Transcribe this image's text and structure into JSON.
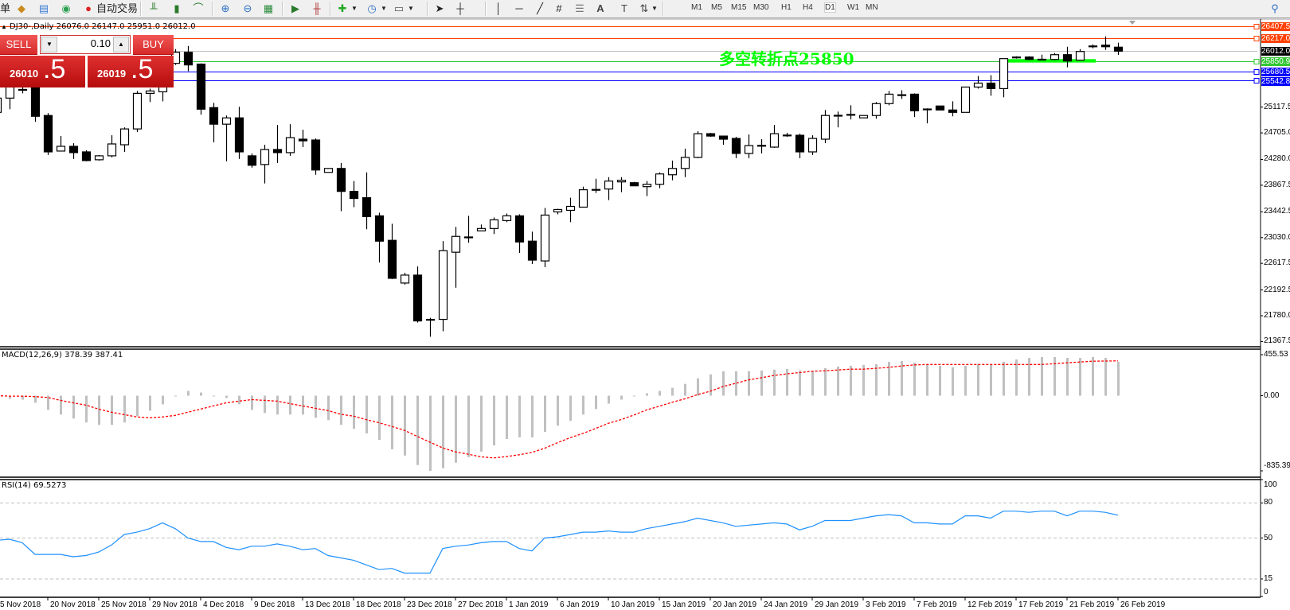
{
  "toolbar": {
    "left_fragment": "单",
    "auto_trade_label": "自动交易",
    "icons": [
      "new-order-icon",
      "market-watch-icon",
      "signals-icon",
      "auto-trading-icon",
      "bar-chart-icon",
      "candlestick-icon",
      "line-chart-icon",
      "zoom-in-icon",
      "zoom-out-icon",
      "tile-windows-icon",
      "auto-scroll-icon",
      "chart-shift-icon",
      "new-chart-icon",
      "periods-clock-icon",
      "templates-icon",
      "cursor-icon",
      "crosshair-icon",
      "vertical-line-icon",
      "horizontal-line-icon",
      "trendline-icon",
      "fibonacci-icon",
      "channels-icon",
      "text-icon",
      "text-label-icon",
      "arrows-icon",
      "search-icon"
    ],
    "timeframes": [
      "M1",
      "M5",
      "M15",
      "M30",
      "H1",
      "H4",
      "D1",
      "W1",
      "MN"
    ],
    "active_timeframe": "D1"
  },
  "chart": {
    "symbol_line": "DJ30-,Daily  26076.0 26147.0 25951.0 26012.0",
    "macd_title": "MACD(12,26,9) 378.39 387.41",
    "rsi_title": "RSI(14) 69.5273"
  },
  "trade_panel": {
    "sell_label": "SELL",
    "buy_label": "BUY",
    "lot": "0.10",
    "sell_price_main": "26010",
    "sell_price_frac": ".5",
    "buy_price_main": "26019",
    "buy_price_frac": ".5"
  },
  "annotation": {
    "text": "多空转折点25850",
    "color": "#00ff00",
    "support_zone_color": "#00ff00"
  },
  "horizontal_lines": [
    {
      "price": 26407.5,
      "label": "26407.5",
      "color": "#ff4000"
    },
    {
      "price": 26217.0,
      "label": "26217.0",
      "color": "#ff4000"
    },
    {
      "price": 26012.0,
      "label": "26012.0",
      "color": "#c0c0c0",
      "label_bg": "#000000"
    },
    {
      "price": 25850.9,
      "label": "25850.9",
      "color": "#32c832"
    },
    {
      "price": 25680.5,
      "label": "25680.5",
      "color": "#0000ff"
    },
    {
      "price": 25542.8,
      "label": "25542.8",
      "color": "#0000ff"
    }
  ],
  "chart_data": [
    {
      "type": "candlestick",
      "symbol": "DJ30-",
      "timeframe": "Daily",
      "ylim": [
        21284,
        26525
      ],
      "y_tick_labels": [
        "25117.5",
        "24705.0",
        "24280.0",
        "23867.5",
        "23442.5",
        "23030.0",
        "22617.5",
        "22192.5",
        "21780.0",
        "21367.5"
      ],
      "date_labels": [
        "5 Nov 2018",
        "20 Nov 2018",
        "25 Nov 2018",
        "29 Nov 2018",
        "4 Dec 2018",
        "9 Dec 2018",
        "13 Dec 2018",
        "18 Dec 2018",
        "23 Dec 2018",
        "27 Dec 2018",
        "1 Jan 2019",
        "6 Jan 2019",
        "10 Jan 2019",
        "15 Jan 2019",
        "20 Jan 2019",
        "24 Jan 2019",
        "29 Jan 2019",
        "3 Feb 2019",
        "7 Feb 2019",
        "12 Feb 2019",
        "17 Feb 2019",
        "21 Feb 2019",
        "26 Feb 2019"
      ],
      "date_label_every": 4,
      "ohlc": [
        [
          25033,
          25387,
          25033,
          25261
        ],
        [
          25261,
          25501,
          25084,
          25438
        ],
        [
          25387,
          25438,
          25337,
          25400
        ],
        [
          25501,
          25564,
          24882,
          24970
        ],
        [
          24983,
          25021,
          24351,
          24401
        ],
        [
          24414,
          24654,
          24414,
          24490
        ],
        [
          24490,
          24540,
          24288,
          24389
        ],
        [
          24401,
          24427,
          24250,
          24262
        ],
        [
          24275,
          24351,
          24262,
          24338
        ],
        [
          24338,
          24667,
          24313,
          24528
        ],
        [
          24515,
          24793,
          24401,
          24768
        ],
        [
          24768,
          25375,
          24718,
          25337
        ],
        [
          25337,
          25413,
          25198,
          25375
        ],
        [
          25362,
          25501,
          25210,
          25438
        ],
        [
          25817,
          26045,
          25792,
          25994
        ],
        [
          25994,
          26095,
          25691,
          25792
        ],
        [
          25805,
          25817,
          24996,
          25084
        ],
        [
          25109,
          25185,
          24553,
          24844
        ],
        [
          24844,
          24983,
          24250,
          24945
        ],
        [
          24945,
          25122,
          24288,
          24401
        ],
        [
          24338,
          24376,
          24149,
          24187
        ],
        [
          24199,
          24515,
          23896,
          24439
        ],
        [
          24439,
          24831,
          24224,
          24389
        ],
        [
          24389,
          24844,
          24338,
          24629
        ],
        [
          24604,
          24755,
          24477,
          24578
        ],
        [
          24591,
          24616,
          24035,
          24111
        ],
        [
          24073,
          24136,
          24073,
          24136
        ],
        [
          24136,
          24224,
          23453,
          23769
        ],
        [
          23769,
          23934,
          23517,
          23656
        ],
        [
          23668,
          24073,
          23163,
          23365
        ],
        [
          23378,
          23428,
          22632,
          22973
        ],
        [
          22986,
          23251,
          22366,
          22379
        ],
        [
          22303,
          22468,
          22278,
          22430
        ],
        [
          22430,
          22569,
          21671,
          21697
        ],
        [
          21722,
          21747,
          21444,
          21709
        ],
        [
          21722,
          22973,
          21532,
          22821
        ],
        [
          22796,
          23201,
          22228,
          23049
        ],
        [
          23036,
          23378,
          22948,
          23040
        ],
        [
          23138,
          23239,
          23138,
          23175
        ],
        [
          23175,
          23352,
          23087,
          23314
        ],
        [
          23302,
          23416,
          23277,
          23378
        ],
        [
          23378,
          23403,
          22784,
          22960
        ],
        [
          22973,
          23125,
          22607,
          22670
        ],
        [
          22657,
          23504,
          22556,
          23390
        ],
        [
          23441,
          23491,
          23403,
          23479
        ],
        [
          23466,
          23668,
          23277,
          23529
        ],
        [
          23517,
          23845,
          23517,
          23795
        ],
        [
          23795,
          23972,
          23744,
          23800
        ],
        [
          23807,
          23997,
          23630,
          23934
        ],
        [
          23921,
          23997,
          23757,
          23947
        ],
        [
          23908,
          23921,
          23858,
          23858
        ],
        [
          23845,
          23934,
          23694,
          23883
        ],
        [
          23883,
          24073,
          23820,
          24048
        ],
        [
          24035,
          24262,
          23947,
          24136
        ],
        [
          24136,
          24452,
          23997,
          24313
        ],
        [
          24313,
          24730,
          24300,
          24692
        ],
        [
          24692,
          24705,
          24642,
          24654
        ],
        [
          24654,
          24654,
          24515,
          24604
        ],
        [
          24616,
          24642,
          24300,
          24376
        ],
        [
          24376,
          24680,
          24300,
          24502
        ],
        [
          24502,
          24604,
          24376,
          24505
        ],
        [
          24477,
          24831,
          24465,
          24692
        ],
        [
          24667,
          24705,
          24642,
          24670
        ],
        [
          24667,
          24692,
          24300,
          24401
        ],
        [
          24401,
          24667,
          24351,
          24616
        ],
        [
          24604,
          25071,
          24540,
          24983
        ],
        [
          24983,
          25046,
          24793,
          24986
        ],
        [
          24996,
          25147,
          24920,
          25000
        ],
        [
          24945,
          24983,
          24945,
          24983
        ],
        [
          24983,
          25198,
          24932,
          25173
        ],
        [
          25173,
          25375,
          25147,
          25324
        ],
        [
          25312,
          25387,
          25248,
          25315
        ],
        [
          25324,
          25337,
          24958,
          25059
        ],
        [
          25084,
          25097,
          24857,
          25087
        ],
        [
          25135,
          25135,
          25071,
          25071
        ],
        [
          25071,
          25210,
          24970,
          25033
        ],
        [
          25033,
          25438,
          25033,
          25438
        ],
        [
          25438,
          25615,
          25413,
          25501
        ],
        [
          25501,
          25628,
          25299,
          25413
        ],
        [
          25413,
          25893,
          25274,
          25893
        ],
        [
          25906,
          25931,
          25893,
          25918
        ],
        [
          25918,
          25931,
          25868,
          25880
        ],
        [
          25880,
          25956,
          25868,
          25883
        ],
        [
          25880,
          25982,
          25868,
          25956
        ],
        [
          25956,
          26083,
          25754,
          25855
        ],
        [
          25868,
          26045,
          25868,
          26007
        ],
        [
          26083,
          26121,
          26057,
          26095
        ],
        [
          26108,
          26247,
          26032,
          26083
        ],
        [
          26076,
          26147,
          25951,
          26012
        ]
      ],
      "support_zone": {
        "price_from": 25830,
        "price_to": 25885,
        "from_index": 79,
        "to_index": 86
      }
    },
    {
      "type": "bar+line",
      "indicator": "MACD(12,26,9)",
      "ylim": [
        -835.39,
        455.53
      ],
      "y_tick_labels": [
        "455.53",
        "0.00",
        "-835.39"
      ],
      "histogram_color": "#c0c0c0",
      "signal_color": "#ff0000",
      "macd": [
        -20,
        -35,
        -44,
        -79,
        -158,
        -210,
        -254,
        -298,
        -325,
        -325,
        -298,
        -228,
        -167,
        -96,
        -9,
        53,
        35,
        -5,
        -26,
        -96,
        -158,
        -193,
        -210,
        -210,
        -210,
        -246,
        -272,
        -324,
        -368,
        -420,
        -491,
        -596,
        -666,
        -771,
        -835.39,
        -806,
        -745,
        -683,
        -622,
        -552,
        -482,
        -464,
        -464,
        -403,
        -333,
        -280,
        -210,
        -149,
        -88,
        -44,
        -6,
        26,
        53,
        88,
        131,
        193,
        237,
        272,
        272,
        272,
        280,
        289,
        298,
        280,
        272,
        307,
        324,
        333,
        342,
        350,
        377,
        385,
        368,
        350,
        333,
        315,
        333,
        350,
        342,
        377,
        403,
        420,
        429,
        429,
        420,
        420,
        429,
        420,
        378.39
      ],
      "signal": [
        0,
        -5,
        -5,
        -10,
        -20,
        -52,
        -79,
        -105,
        -149,
        -184,
        -210,
        -237,
        -246,
        -237,
        -219,
        -184,
        -149,
        -114,
        -79,
        -61,
        -44,
        -52,
        -61,
        -88,
        -114,
        -140,
        -166,
        -207,
        -228,
        -266,
        -301,
        -342,
        -385,
        -453,
        -517,
        -581,
        -625,
        -651,
        -680,
        -692,
        -677,
        -657,
        -631,
        -584,
        -523,
        -467,
        -420,
        -365,
        -307,
        -266,
        -216,
        -158,
        -117,
        -73,
        -35,
        12,
        50,
        102,
        137,
        175,
        199,
        225,
        242,
        257,
        272,
        277,
        286,
        295,
        295,
        304,
        315,
        330,
        342,
        347,
        347,
        347,
        347,
        347,
        347,
        347,
        347,
        347,
        347,
        356,
        365,
        374,
        383,
        385,
        387.41
      ]
    },
    {
      "type": "line",
      "indicator": "RSI(14)",
      "ylim": [
        0,
        100
      ],
      "levels": [
        80,
        50,
        15
      ],
      "y_tick_labels": [
        "100",
        "80",
        "50",
        "15",
        "0"
      ],
      "color": "#1e90ff",
      "values": [
        48,
        49,
        46,
        36,
        36,
        36,
        34,
        35,
        38,
        44,
        53,
        55,
        58,
        63,
        58,
        50,
        47,
        47,
        42,
        40,
        43,
        43,
        45,
        43,
        40,
        41,
        35,
        33,
        31,
        27,
        23,
        24,
        20,
        20,
        20,
        41,
        43,
        44,
        46,
        47,
        47,
        41,
        39,
        50,
        51,
        53,
        55,
        55,
        56,
        55,
        55,
        58,
        60,
        62,
        64,
        67,
        65,
        63,
        60,
        61,
        62,
        63,
        62,
        57,
        60,
        65,
        65,
        65,
        67,
        69,
        70,
        69,
        63,
        63,
        62,
        62,
        69,
        69,
        67,
        73,
        73,
        72,
        73,
        73,
        69,
        73,
        73,
        72,
        69.5273
      ]
    }
  ]
}
